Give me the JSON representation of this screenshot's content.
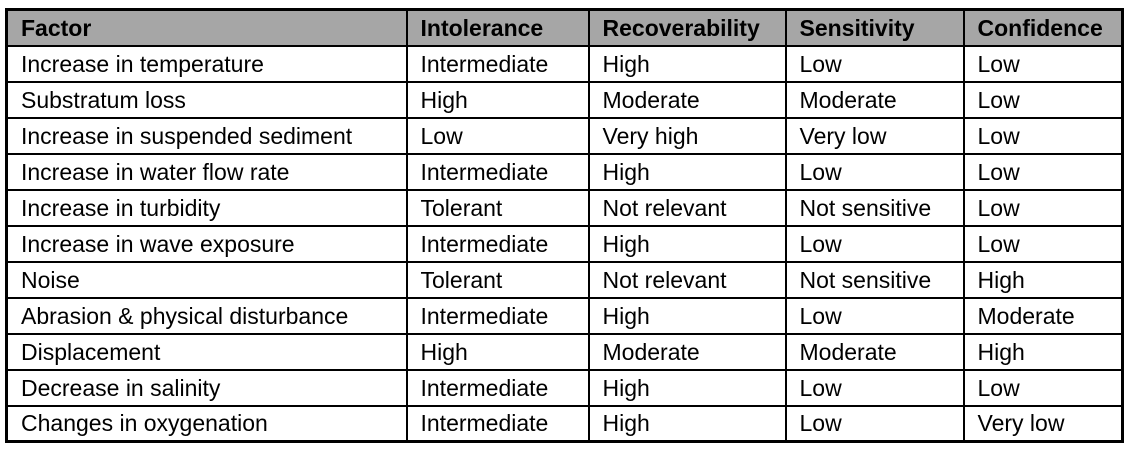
{
  "chart_data": {
    "type": "table",
    "title": "",
    "columns": [
      "Factor",
      "Intolerance",
      "Recoverability",
      "Sensitivity",
      "Confidence"
    ],
    "rows": [
      [
        "Increase in temperature",
        "Intermediate",
        "High",
        "Low",
        "Low"
      ],
      [
        "Substratum loss",
        "High",
        "Moderate",
        "Moderate",
        "Low"
      ],
      [
        "Increase in suspended sediment",
        "Low",
        "Very high",
        "Very low",
        "Low"
      ],
      [
        "Increase in water flow rate",
        "Intermediate",
        "High",
        "Low",
        "Low"
      ],
      [
        "Increase in turbidity",
        "Tolerant",
        "Not relevant",
        "Not sensitive",
        "Low"
      ],
      [
        "Increase in wave exposure",
        "Intermediate",
        "High",
        "Low",
        "Low"
      ],
      [
        "Noise",
        "Tolerant",
        "Not relevant",
        "Not sensitive",
        "High"
      ],
      [
        "Abrasion & physical disturbance",
        "Intermediate",
        "High",
        "Low",
        "Moderate"
      ],
      [
        "Displacement",
        "High",
        "Moderate",
        "Moderate",
        "High"
      ],
      [
        "Decrease in salinity",
        "Intermediate",
        "High",
        "Low",
        "Low"
      ],
      [
        "Changes in oxygenation",
        "Intermediate",
        "High",
        "Low",
        "Very low"
      ]
    ]
  },
  "table": {
    "headers": {
      "factor": "Factor",
      "intolerance": "Intolerance",
      "recoverability": "Recoverability",
      "sensitivity": "Sensitivity",
      "confidence": "Confidence"
    },
    "rows": [
      {
        "factor": "Increase in temperature",
        "intolerance": "Intermediate",
        "recoverability": "High",
        "sensitivity": "Low",
        "confidence": "Low"
      },
      {
        "factor": "Substratum loss",
        "intolerance": "High",
        "recoverability": "Moderate",
        "sensitivity": "Moderate",
        "confidence": "Low"
      },
      {
        "factor": "Increase in suspended sediment",
        "intolerance": "Low",
        "recoverability": "Very high",
        "sensitivity": "Very low",
        "confidence": "Low"
      },
      {
        "factor": "Increase in water flow rate",
        "intolerance": "Intermediate",
        "recoverability": "High",
        "sensitivity": "Low",
        "confidence": "Low"
      },
      {
        "factor": "Increase in turbidity",
        "intolerance": "Tolerant",
        "recoverability": "Not relevant",
        "sensitivity": "Not sensitive",
        "confidence": "Low"
      },
      {
        "factor": "Increase in wave exposure",
        "intolerance": "Intermediate",
        "recoverability": "High",
        "sensitivity": "Low",
        "confidence": "Low"
      },
      {
        "factor": "Noise",
        "intolerance": "Tolerant",
        "recoverability": "Not relevant",
        "sensitivity": "Not sensitive",
        "confidence": "High"
      },
      {
        "factor": "Abrasion & physical disturbance",
        "intolerance": "Intermediate",
        "recoverability": "High",
        "sensitivity": "Low",
        "confidence": "Moderate"
      },
      {
        "factor": "Displacement",
        "intolerance": "High",
        "recoverability": "Moderate",
        "sensitivity": "Moderate",
        "confidence": "High"
      },
      {
        "factor": "Decrease in salinity",
        "intolerance": "Intermediate",
        "recoverability": "High",
        "sensitivity": "Low",
        "confidence": "Low"
      },
      {
        "factor": "Changes in oxygenation",
        "intolerance": "Intermediate",
        "recoverability": "High",
        "sensitivity": "Low",
        "confidence": "Very low"
      }
    ],
    "colors": {
      "header_bg": "#a6a6a6",
      "border": "#000000",
      "text": "#000000",
      "body_bg": "#ffffff"
    }
  }
}
